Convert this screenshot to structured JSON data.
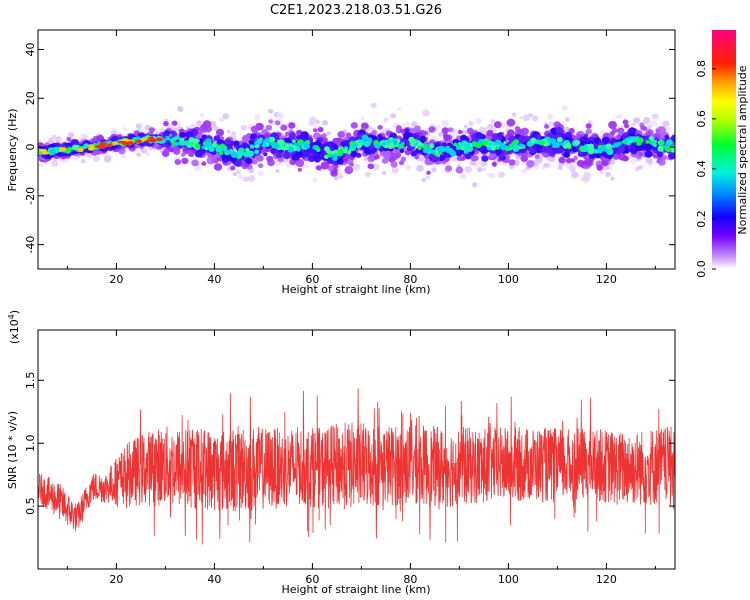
{
  "title": "C2E1.2023.218.03.51.G26",
  "chart_data": [
    {
      "type": "heatmap",
      "xlabel": "Height of straight line (km)",
      "ylabel": "Frequency (Hz)",
      "xlim": [
        4,
        134
      ],
      "ylim": [
        -50,
        48
      ],
      "xticks": [
        20,
        40,
        60,
        80,
        100,
        120
      ],
      "yticks": [
        -40,
        -20,
        0,
        20,
        40
      ],
      "colorbar": {
        "label": "Normalized spectral amplitude",
        "range": [
          0,
          1
        ],
        "ticks": [
          "0.0",
          "0.2",
          "0.4",
          "0.6",
          "0.8"
        ],
        "colormap": [
          "#ffffff",
          "#a020f0",
          "#3000ff",
          "#00c8ff",
          "#00ff00",
          "#ffff00",
          "#ff0000",
          "#ff0080"
        ]
      },
      "ridge": {
        "x": [
          4,
          10,
          15,
          20,
          25,
          30,
          35,
          40,
          45,
          50,
          55,
          60,
          65,
          70,
          75,
          80,
          85,
          90,
          95,
          100,
          105,
          110,
          115,
          120,
          125,
          130,
          134
        ],
        "y": [
          -2,
          -1,
          0,
          1.5,
          3,
          3,
          2,
          0,
          -3,
          2,
          1,
          0,
          -3,
          2,
          1,
          2,
          -2,
          0,
          1,
          0,
          2,
          2,
          0,
          -1,
          3,
          1,
          0
        ]
      }
    },
    {
      "type": "line",
      "xlabel": "Height of straight line (km)",
      "ylabel": "SNR (10 * v/v)",
      "y_multiplier": "(x10",
      "y_exponent": "4",
      "y_multiplier_close": ")",
      "xlim": [
        4,
        134
      ],
      "ylim": [
        0,
        19000
      ],
      "xticks": [
        20,
        40,
        60,
        80,
        100,
        120
      ],
      "yticks": [
        5000,
        10000,
        15000
      ],
      "ytick_labels": [
        "0.5",
        "1.0",
        "1.5"
      ],
      "color": "#ee3333",
      "envelope": {
        "x": [
          4,
          8,
          12,
          15,
          18,
          22,
          26,
          30,
          34,
          38,
          42,
          46,
          50,
          54,
          58,
          62,
          66,
          70,
          74,
          78,
          82,
          86,
          90,
          94,
          98,
          102,
          106,
          110,
          114,
          118,
          122,
          126,
          130,
          134
        ],
        "mean": [
          6500,
          5500,
          4000,
          6500,
          6500,
          7500,
          8000,
          8200,
          8000,
          8000,
          7800,
          8000,
          8000,
          8000,
          8200,
          8000,
          8200,
          8200,
          8300,
          8200,
          8300,
          8000,
          8200,
          8200,
          8300,
          8300,
          8300,
          8200,
          8300,
          8300,
          8000,
          8000,
          8200,
          8500
        ],
        "spread": [
          1200,
          1500,
          1200,
          1200,
          1300,
          2500,
          3000,
          3200,
          3300,
          3300,
          3400,
          3500,
          3300,
          3200,
          3200,
          3200,
          3500,
          3500,
          3300,
          3200,
          3200,
          3300,
          3200,
          3000,
          3000,
          3000,
          3000,
          3000,
          2900,
          2900,
          3000,
          3000,
          3200,
          2800
        ]
      }
    }
  ]
}
